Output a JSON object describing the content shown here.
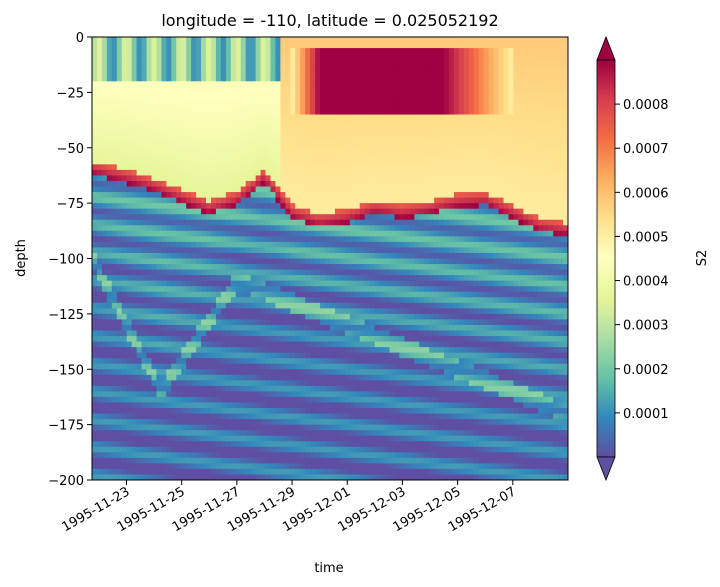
{
  "chart_data": {
    "type": "heatmap",
    "title": "longitude = -110, latitude = 0.025052192",
    "xlabel": "time",
    "ylabel": "depth",
    "colorbar_label": "S2",
    "colormap": "Spectral_r",
    "extend": "both",
    "x_range": [
      "1995-11-21T18:00",
      "1995-12-09T00:00"
    ],
    "x_ticks": [
      "1995-11-23",
      "1995-11-25",
      "1995-11-27",
      "1995-11-29",
      "1995-12-01",
      "1995-12-03",
      "1995-12-05",
      "1995-12-07"
    ],
    "ylim": [
      -200,
      0
    ],
    "y_ticks": [
      0,
      -25,
      -50,
      -75,
      -100,
      -125,
      -150,
      -175,
      -200
    ],
    "y_tick_labels": [
      "0",
      "−25",
      "−50",
      "−75",
      "−100",
      "−125",
      "−150",
      "−175",
      "−200"
    ],
    "clim": [
      0,
      0.0009
    ],
    "colorbar_ticks": [
      0.0001,
      0.0002,
      0.0003,
      0.0004,
      0.0005,
      0.0006,
      0.0007,
      0.0008
    ],
    "colorbar_tick_labels": [
      "0.0001",
      "0.0002",
      "0.0003",
      "0.0004",
      "0.0005",
      "0.0006",
      "0.0007",
      "0.0008"
    ],
    "features": {
      "mixed_layer_base_depth": [
        {
          "time": "1995-11-21T18:00",
          "depth": -62
        },
        {
          "time": "1995-11-23T00:00",
          "depth": -66
        },
        {
          "time": "1995-11-24T00:00",
          "depth": -70
        },
        {
          "time": "1995-11-25T00:00",
          "depth": -75
        },
        {
          "time": "1995-11-26T00:00",
          "depth": -80
        },
        {
          "time": "1995-11-27T00:00",
          "depth": -76
        },
        {
          "time": "1995-11-28T00:00",
          "depth": -66
        },
        {
          "time": "1995-11-29T00:00",
          "depth": -82
        },
        {
          "time": "1995-11-30T00:00",
          "depth": -86
        },
        {
          "time": "1995-12-01T00:00",
          "depth": -84
        },
        {
          "time": "1995-12-02T00:00",
          "depth": -80
        },
        {
          "time": "1995-12-03T00:00",
          "depth": -82
        },
        {
          "time": "1995-12-04T00:00",
          "depth": -80
        },
        {
          "time": "1995-12-05T00:00",
          "depth": -77
        },
        {
          "time": "1995-12-06T00:00",
          "depth": -76
        },
        {
          "time": "1995-12-07T00:00",
          "depth": -82
        },
        {
          "time": "1995-12-08T00:00",
          "depth": -88
        },
        {
          "time": "1995-12-09T00:00",
          "depth": -90
        }
      ],
      "deep_trough_depth": [
        {
          "time": "1995-11-21T18:00",
          "depth": -110
        },
        {
          "time": "1995-11-24T06:00",
          "depth": -170
        },
        {
          "time": "1995-11-27T00:00",
          "depth": -120
        },
        {
          "time": "1995-12-01T00:00",
          "depth": -140
        },
        {
          "time": "1995-12-05T00:00",
          "depth": -160
        },
        {
          "time": "1995-12-09T00:00",
          "depth": -180
        }
      ],
      "shallow_max_S2": [
        {
          "time_start": "1995-11-30T00:00",
          "time_end": "1995-12-04T12:00",
          "depth_top": -8,
          "depth_bottom": -30,
          "peak_value": 0.0009
        }
      ]
    }
  }
}
